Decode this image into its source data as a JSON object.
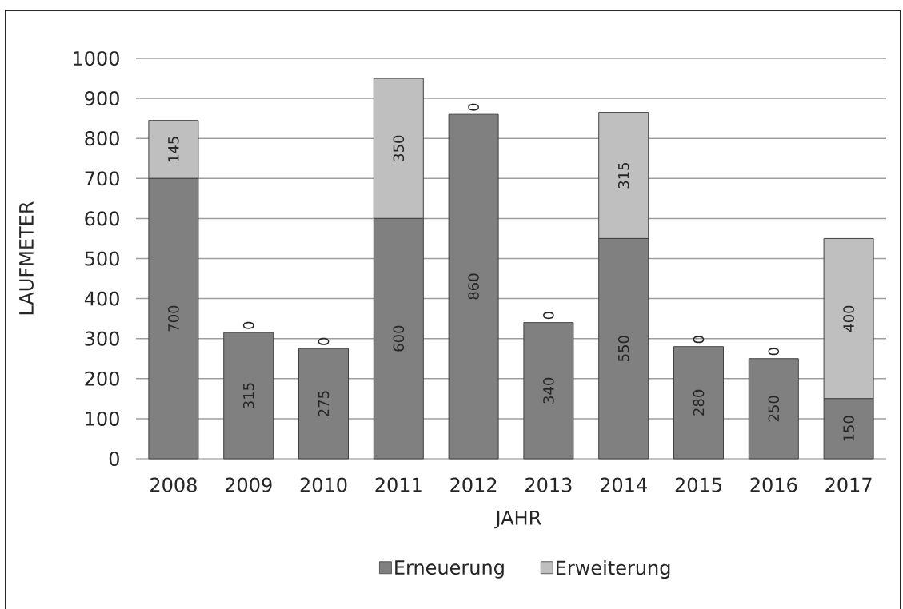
{
  "chart_data": {
    "type": "bar",
    "stacked": true,
    "xlabel": "JAHR",
    "ylabel": "LAUFMETER",
    "categories": [
      "2008",
      "2009",
      "2010",
      "2011",
      "2012",
      "2013",
      "2014",
      "2015",
      "2016",
      "2017"
    ],
    "series": [
      {
        "name": "Erneuerung",
        "color": "#808080",
        "values": [
          700,
          315,
          275,
          600,
          860,
          340,
          550,
          280,
          250,
          150
        ]
      },
      {
        "name": "Erweiterung",
        "color": "#bfbfbf",
        "values": [
          145,
          0,
          0,
          350,
          0,
          0,
          315,
          0,
          0,
          400
        ]
      }
    ],
    "ylim": [
      0,
      1000
    ],
    "yticks": [
      0,
      100,
      200,
      300,
      400,
      500,
      600,
      700,
      800,
      900,
      1000
    ],
    "grid": "y",
    "legend": "bottom",
    "data_labels": true
  }
}
